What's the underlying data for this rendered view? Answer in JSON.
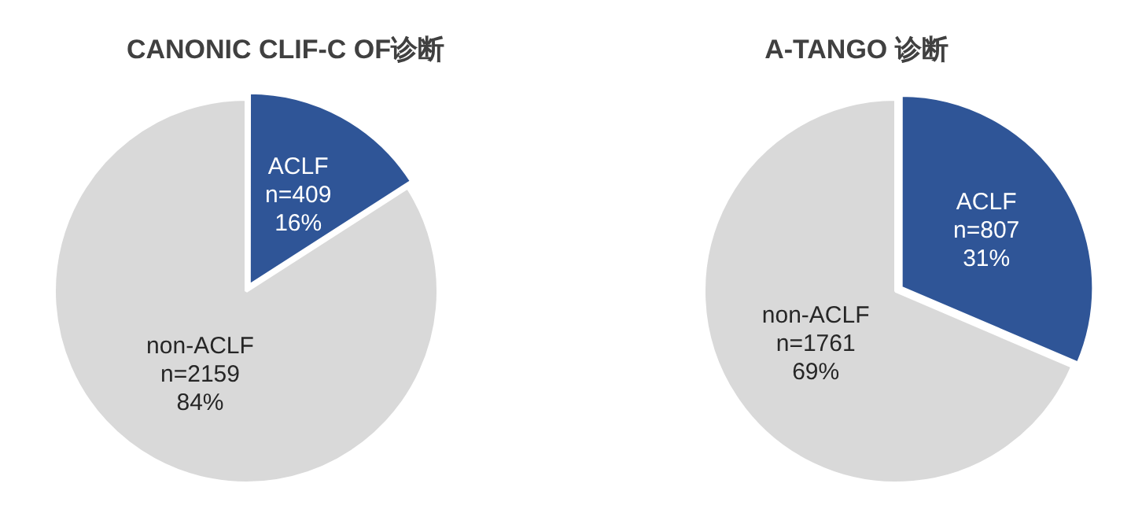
{
  "chart_data": [
    {
      "type": "pie",
      "title": "CANONIC CLIF-C OF诊断",
      "categories": [
        "ACLF",
        "non-ACLF"
      ],
      "values": [
        409,
        2159
      ],
      "colors": [
        "#2f5597",
        "#d9d9d9"
      ],
      "value_labels": [
        "n=409\n16%",
        "n=2159\n84%"
      ],
      "legend": false
    },
    {
      "type": "pie",
      "title": "A-TANGO 诊断",
      "categories": [
        "ACLF",
        "non-ACLF"
      ],
      "values": [
        807,
        1761
      ],
      "colors": [
        "#2f5597",
        "#d9d9d9"
      ],
      "value_labels": [
        "n=807\n31%",
        "n=1761\n69%"
      ],
      "legend": false
    }
  ]
}
